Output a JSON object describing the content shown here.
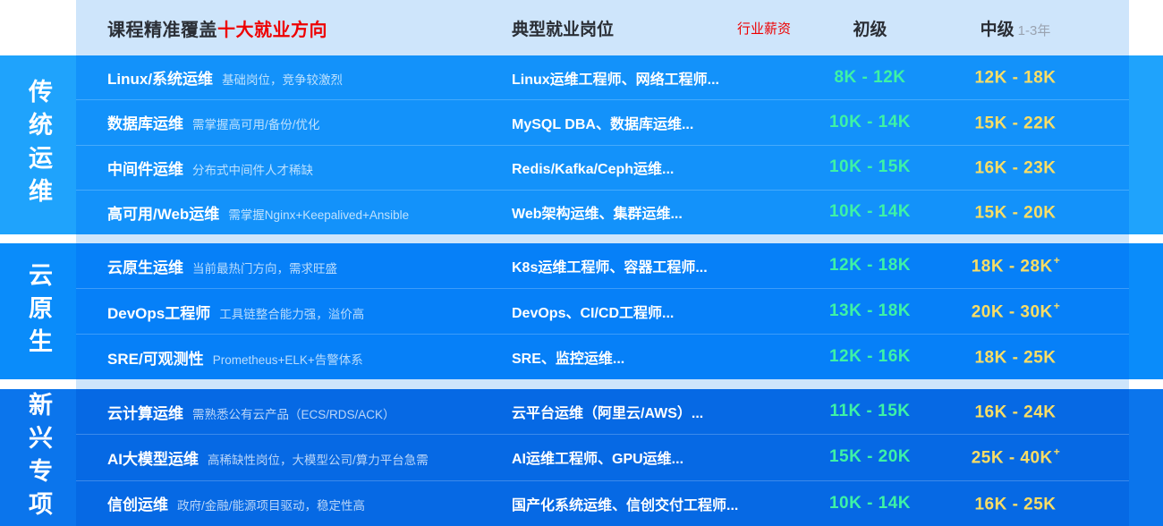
{
  "chart_data": {
    "type": "table",
    "title": "课程精准覆盖十大就业方向",
    "header": {
      "title_prefix": "课程精准覆盖",
      "title_highlight": "十大就业方向",
      "positions_col": "典型就业岗位",
      "salary_tag": "行业薪资",
      "junior_col": "初级",
      "mid_col": "中级",
      "mid_note": "1-3年"
    },
    "sections": [
      {
        "label": "传统运维",
        "band_color": "#1fa3fc",
        "panel_color": "#1392fa",
        "rows": [
          {
            "direction": "Linux/系统运维",
            "desc": "基础岗位，竞争较激烈",
            "positions": "Linux运维工程师、网络工程师...",
            "junior": "8K - 12K",
            "mid": "12K - 18K",
            "mid_sup": ""
          },
          {
            "direction": "数据库运维",
            "desc": "需掌握高可用/备份/优化",
            "positions": "MySQL DBA、数据库运维...",
            "junior": "10K - 14K",
            "mid": "15K - 22K",
            "mid_sup": ""
          },
          {
            "direction": "中间件运维",
            "desc": "分布式中间件人才稀缺",
            "positions": "Redis/Kafka/Ceph运维...",
            "junior": "10K - 15K",
            "mid": "16K - 23K",
            "mid_sup": ""
          },
          {
            "direction": "高可用/Web运维",
            "desc": "需掌握Nginx+Keepalived+Ansible",
            "positions": "Web架构运维、集群运维...",
            "junior": "10K - 14K",
            "mid": "15K - 20K",
            "mid_sup": ""
          }
        ]
      },
      {
        "label": "云原生",
        "band_color": "#0a8cfa",
        "panel_color": "#0680f8",
        "rows": [
          {
            "direction": "云原生运维",
            "desc": "当前最热门方向，需求旺盛",
            "positions": "K8s运维工程师、容器工程师...",
            "junior": "12K - 18K",
            "mid": "18K - 28K",
            "mid_sup": "+"
          },
          {
            "direction": "DevOps工程师",
            "desc": "工具链整合能力强，溢价高",
            "positions": "DevOps、CI/CD工程师...",
            "junior": "13K - 18K",
            "mid": "20K - 30K",
            "mid_sup": "+"
          },
          {
            "direction": "SRE/可观测性",
            "desc": "Prometheus+ELK+告警体系",
            "positions": "SRE、监控运维...",
            "junior": "12K - 16K",
            "mid": "18K - 25K",
            "mid_sup": ""
          }
        ]
      },
      {
        "label": "新兴专项",
        "band_color": "#0b75ec",
        "panel_color": "#0669e4",
        "rows": [
          {
            "direction": "云计算运维",
            "desc": "需熟悉公有云产品（ECS/RDS/ACK）",
            "positions": "云平台运维（阿里云/AWS）...",
            "junior": "11K - 15K",
            "mid": "16K - 24K",
            "mid_sup": ""
          },
          {
            "direction": "AI大模型运维",
            "desc": "高稀缺性岗位，大模型公司/算力平台急需",
            "positions": "AI运维工程师、GPU运维...",
            "junior": "15K - 20K",
            "mid": "25K - 40K",
            "mid_sup": "+"
          },
          {
            "direction": "信创运维",
            "desc": "政府/金融/能源项目驱动，稳定性高",
            "positions": "国产化系统运维、信创交付工程师...",
            "junior": "10K - 14K",
            "mid": "16K - 25K",
            "mid_sup": ""
          }
        ]
      }
    ]
  },
  "colors": {
    "header_bg": "#cee5fb",
    "junior_salary": "#3df2a6",
    "mid_salary": "#f9dd65",
    "highlight_red": "#ee0000",
    "header_text": "#2a2e35",
    "mid_note_gray": "#9aa3b0"
  }
}
